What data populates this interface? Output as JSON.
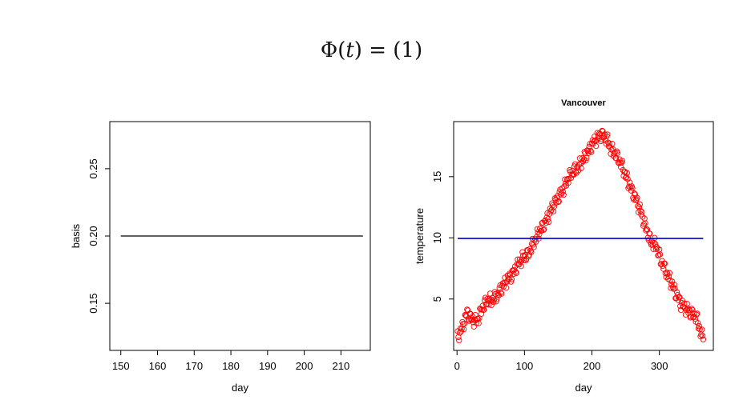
{
  "heading": {
    "lhs_symbol": "Φ",
    "lhs_open": "(",
    "lhs_var": "t",
    "lhs_close": ")",
    "equals": "=",
    "rhs": "(1)"
  },
  "chart_data": [
    {
      "type": "line",
      "title": "",
      "xlabel": "day",
      "ylabel": "basis",
      "xlim": [
        147,
        218
      ],
      "ylim": [
        0.115,
        0.285
      ],
      "xticks": [
        "150",
        "160",
        "170",
        "180",
        "190",
        "200",
        "210"
      ],
      "xtick_values": [
        150,
        160,
        170,
        180,
        190,
        200,
        210
      ],
      "yticks": [
        "0.15",
        "0.20",
        "0.25"
      ],
      "ytick_values": [
        0.15,
        0.2,
        0.25
      ],
      "grid": false,
      "series": [
        {
          "color": "#000000",
          "x": [
            150,
            216
          ],
          "y": [
            0.2,
            0.2
          ]
        }
      ]
    },
    {
      "type": "scatter",
      "title": "Vancouver",
      "xlabel": "day",
      "ylabel": "temperature",
      "xlim": [
        -5,
        380
      ],
      "ylim": [
        0.8,
        19.5
      ],
      "xticks": [
        "0",
        "100",
        "200",
        "300"
      ],
      "xtick_values": [
        0,
        100,
        200,
        300
      ],
      "yticks": [
        "5",
        "10",
        "15"
      ],
      "ytick_values": [
        5,
        10,
        15
      ],
      "grid": false,
      "points_color": "#ff0000",
      "observations": {
        "day": [
          1,
          8,
          15,
          22,
          30,
          38,
          45,
          52,
          60,
          68,
          75,
          82,
          90,
          98,
          105,
          112,
          120,
          128,
          135,
          142,
          150,
          158,
          165,
          172,
          180,
          188,
          195,
          202,
          210,
          216,
          222,
          228,
          235,
          242,
          250,
          258,
          265,
          272,
          280,
          288,
          295,
          302,
          310,
          318,
          325,
          332,
          340,
          348,
          355,
          362,
          365
        ],
        "temperature": [
          1.9,
          2.7,
          3.9,
          3.3,
          3.2,
          4.3,
          4.9,
          4.9,
          5.3,
          6.1,
          6.6,
          7.0,
          7.8,
          8.4,
          8.6,
          9.4,
          10.3,
          11.0,
          11.7,
          12.6,
          13.3,
          14.0,
          14.9,
          15.4,
          15.8,
          16.5,
          17.1,
          17.8,
          18.3,
          18.4,
          18.1,
          17.3,
          16.8,
          16.2,
          15.1,
          14.0,
          13.2,
          12.2,
          10.8,
          9.6,
          9.4,
          8.2,
          7.2,
          6.3,
          5.4,
          4.6,
          4.2,
          3.8,
          3.5,
          2.1,
          1.7
        ]
      },
      "fit": {
        "color": "#0000cc",
        "x": [
          1,
          365
        ],
        "y": [
          9.95,
          9.95
        ]
      }
    }
  ]
}
